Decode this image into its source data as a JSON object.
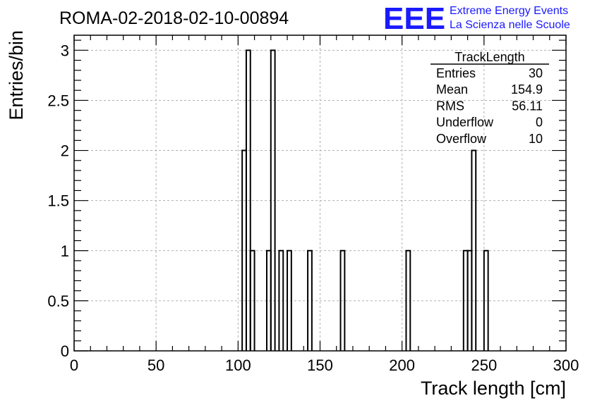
{
  "header": {
    "run_title": "ROMA-02-2018-02-10-00894",
    "brand_logo": "EEE",
    "brand_line1": "Extreme Energy Events",
    "brand_line2": "La Scienza nelle Scuole",
    "brand_color": "#1a1aff"
  },
  "stats_box": {
    "title": "TrackLength",
    "rows": [
      {
        "label": "Entries",
        "value": "30"
      },
      {
        "label": "Mean",
        "value": "154.9"
      },
      {
        "label": "RMS",
        "value": "56.11"
      },
      {
        "label": "Underflow",
        "value": "0"
      },
      {
        "label": "Overflow",
        "value": "10"
      }
    ]
  },
  "chart_data": {
    "type": "bar",
    "style": "step-histogram",
    "xlabel": "Track length [cm]",
    "ylabel": "Entries/bin",
    "xlim": [
      0,
      300
    ],
    "ylim": [
      0,
      3.15
    ],
    "bin_width": 2.5,
    "grid": true,
    "x_ticks": [
      0,
      50,
      100,
      150,
      200,
      250,
      300
    ],
    "y_ticks": [
      0,
      0.5,
      1,
      1.5,
      2,
      2.5,
      3
    ],
    "x_tick_labels": [
      "0",
      "50",
      "100",
      "150",
      "200",
      "250",
      "300"
    ],
    "y_tick_labels": [
      "0",
      "0.5",
      "1",
      "1.5",
      "2",
      "2.5",
      "3"
    ],
    "bins": [
      {
        "x": 102.5,
        "value": 2
      },
      {
        "x": 105,
        "value": 3
      },
      {
        "x": 107.5,
        "value": 1
      },
      {
        "x": 117.5,
        "value": 1
      },
      {
        "x": 120,
        "value": 3
      },
      {
        "x": 125,
        "value": 1
      },
      {
        "x": 130,
        "value": 1
      },
      {
        "x": 142.5,
        "value": 1
      },
      {
        "x": 162.5,
        "value": 1
      },
      {
        "x": 202.5,
        "value": 1
      },
      {
        "x": 237.5,
        "value": 1
      },
      {
        "x": 240,
        "value": 1
      },
      {
        "x": 242.5,
        "value": 2
      },
      {
        "x": 250,
        "value": 1
      }
    ]
  }
}
